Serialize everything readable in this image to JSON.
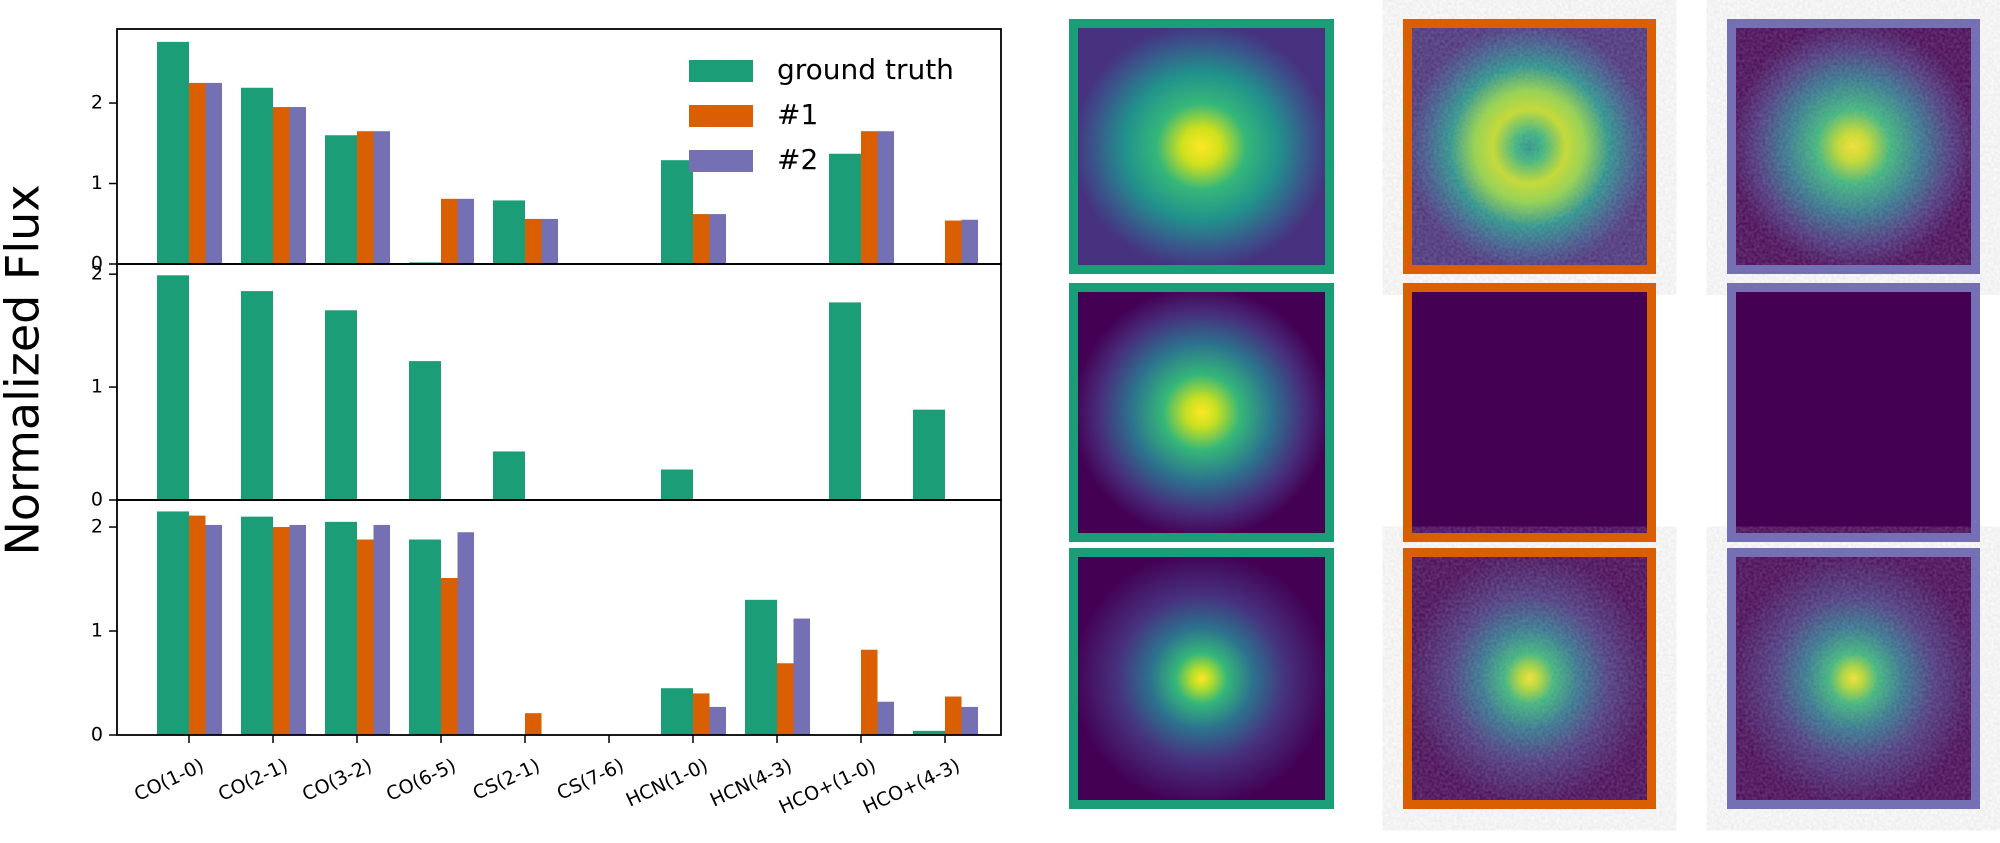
{
  "figure": {
    "ylabel": "Normalized Flux"
  },
  "chart_data": [
    {
      "type": "bar",
      "legend": "upper right",
      "categories": [
        null,
        null,
        null,
        null,
        null,
        null,
        null,
        null,
        null,
        null
      ],
      "ylim": [
        0,
        2.92
      ],
      "yticks": [
        0,
        1,
        2
      ],
      "series": [
        {
          "name": "ground truth",
          "color": "#1b9e77",
          "values": [
            2.76,
            2.19,
            1.6,
            0.02,
            0.79,
            0,
            1.29,
            0,
            1.37,
            0
          ]
        },
        {
          "name": "#1",
          "color": "#d95f02",
          "values": [
            2.25,
            1.95,
            1.65,
            0.81,
            0.56,
            0,
            0.62,
            0,
            1.65,
            0.54
          ]
        },
        {
          "name": "#2",
          "color": "#7570b3",
          "values": [
            2.25,
            1.95,
            1.65,
            0.81,
            0.56,
            0,
            0.62,
            0,
            1.65,
            0.55
          ]
        }
      ]
    },
    {
      "type": "bar",
      "categories": [
        null,
        null,
        null,
        null,
        null,
        null,
        null,
        null,
        null,
        null
      ],
      "ylim": [
        0,
        2.09
      ],
      "yticks": [
        0,
        1,
        2
      ],
      "series": [
        {
          "color": "#1b9e77",
          "values": [
            1.99,
            1.85,
            1.68,
            1.23,
            0.43,
            0,
            0.27,
            0,
            1.75,
            0.8
          ]
        },
        {
          "color": "#d95f02",
          "values": [
            0,
            0,
            0,
            0,
            0,
            0,
            0,
            0,
            0,
            0
          ]
        },
        {
          "color": "#7570b3",
          "values": [
            0,
            0,
            0,
            0,
            0,
            0,
            0,
            0,
            0,
            0
          ]
        }
      ]
    },
    {
      "type": "bar",
      "categories": [
        "CO(1-0)",
        "CO(2-1)",
        "CO(3-2)",
        "CO(6-5)",
        "CS(2-1)",
        "CS(7-6)",
        "HCN(1-0)",
        "HCN(4-3)",
        "HCO+(1-0)",
        "HCO+(4-3)"
      ],
      "ylim": [
        0,
        2.26
      ],
      "yticks": [
        0,
        1,
        2
      ],
      "series": [
        {
          "color": "#1b9e77",
          "values": [
            2.15,
            2.1,
            2.05,
            1.88,
            0,
            0,
            0.45,
            1.3,
            0,
            0.04
          ]
        },
        {
          "color": "#d95f02",
          "values": [
            2.11,
            2.0,
            1.88,
            1.51,
            0.21,
            0,
            0.4,
            0.69,
            0.82,
            0.37
          ]
        },
        {
          "color": "#7570b3",
          "values": [
            2.02,
            2.02,
            2.02,
            1.95,
            0,
            0,
            0.27,
            1.12,
            0.32,
            0.27
          ]
        }
      ]
    }
  ]
}
